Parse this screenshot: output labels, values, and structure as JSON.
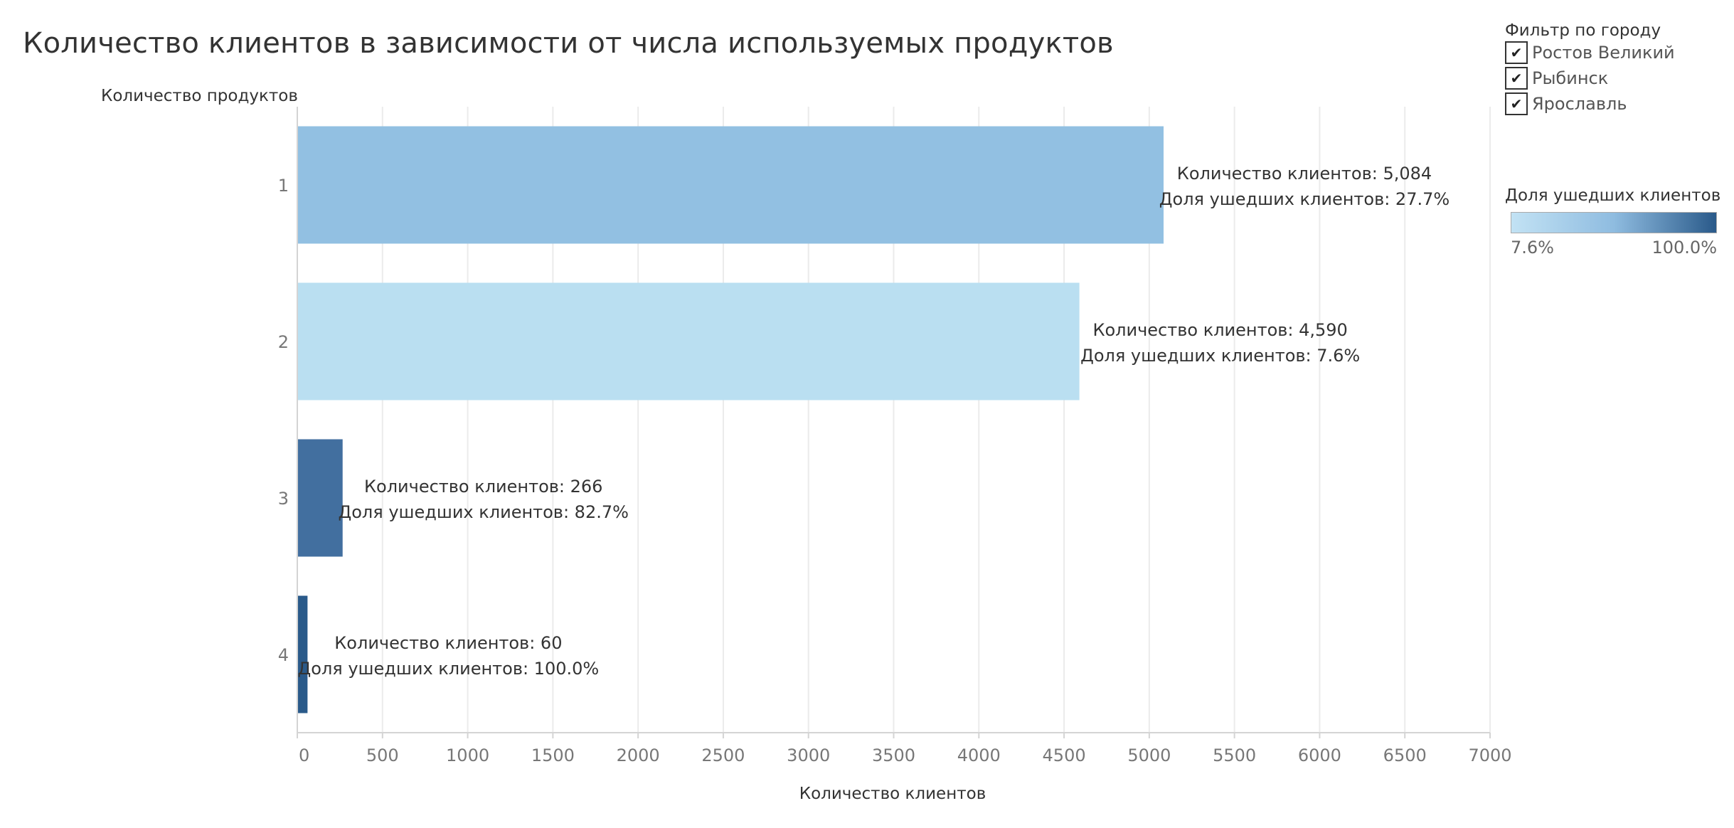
{
  "title": "Количество клиентов в зависимости от числа используемых продуктов",
  "filter": {
    "title": "Фильтр по городу",
    "items": [
      {
        "label": "Ростов Великий",
        "checked": true
      },
      {
        "label": "Рыбинск",
        "checked": true
      },
      {
        "label": "Ярославль",
        "checked": true
      }
    ]
  },
  "legend": {
    "title": "Доля ушедших клиентов",
    "min_label": "7.6%",
    "max_label": "100.0%",
    "color_low": "#c2e2f4",
    "color_high": "#2a5a8a"
  },
  "chart_data": {
    "type": "bar",
    "orientation": "horizontal",
    "categories": [
      "1",
      "2",
      "3",
      "4"
    ],
    "values": [
      5084,
      4590,
      266,
      60
    ],
    "churn_share": [
      27.7,
      7.6,
      82.7,
      100.0
    ],
    "bar_colors": [
      "#92c0e2",
      "#badff1",
      "#426f9f",
      "#2a5a8a"
    ],
    "labels": [
      [
        "Количество клиентов: 5,084",
        "Доля ушедших клиентов: 27.7%"
      ],
      [
        "Количество клиентов: 4,590",
        "Доля ушедших клиентов: 7.6%"
      ],
      [
        "Количество клиентов: 266",
        "Доля ушедших клиентов: 82.7%"
      ],
      [
        "Количество клиентов: 60",
        "Доля ушедших клиентов: 100.0%"
      ]
    ],
    "xlabel": "Количество клиентов",
    "ylabel": "Количество продуктов",
    "xlim": [
      0,
      7000
    ],
    "xticks": [
      0,
      500,
      1000,
      1500,
      2000,
      2500,
      3000,
      3500,
      4000,
      4500,
      5000,
      5500,
      6000,
      6500,
      7000
    ],
    "grid": true
  }
}
